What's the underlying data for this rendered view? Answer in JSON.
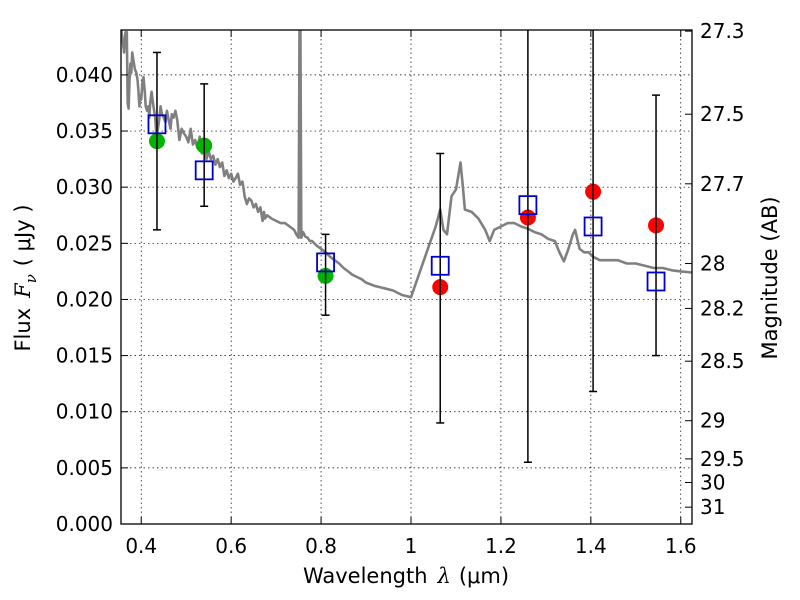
{
  "chart_data": {
    "type": "scatter",
    "xlabel_prefix": "Wavelength",
    "xlabel_symbol": "λ",
    "xlabel_unit": "(μm)",
    "ylabel_prefix": "Flux",
    "ylabel_symbol": "F",
    "ylabel_subscript": "ν",
    "ylabel_unit": "( μJy )",
    "y2label": "Magnitude (AB)",
    "xlim": [
      0.355,
      1.625
    ],
    "ylim": [
      0.0,
      0.044
    ],
    "grid": true,
    "x_ticks": [
      0.4,
      0.6,
      0.8,
      1.0,
      1.2,
      1.4,
      1.6
    ],
    "x_tick_labels": [
      "0.4",
      "0.6",
      "0.8",
      "1",
      "1.2",
      "1.4",
      "1.6"
    ],
    "y_ticks": [
      0.0,
      0.005,
      0.01,
      0.015,
      0.02,
      0.025,
      0.03,
      0.035,
      0.04
    ],
    "y_tick_labels": [
      "0.000",
      "0.005",
      "0.010",
      "0.015",
      "0.020",
      "0.025",
      "0.030",
      "0.035",
      "0.040"
    ],
    "mag_ticks": [
      {
        "flux": 0.0439,
        "label": "27.3"
      },
      {
        "flux": 0.0365,
        "label": "27.5"
      },
      {
        "flux": 0.0303,
        "label": "27.7"
      },
      {
        "flux": 0.0232,
        "label": "28"
      },
      {
        "flux": 0.0192,
        "label": "28.2"
      },
      {
        "flux": 0.0145,
        "label": "28.5"
      },
      {
        "flux": 0.0092,
        "label": "29"
      },
      {
        "flux": 0.0058,
        "label": "29.5"
      },
      {
        "flux": 0.0037,
        "label": "30"
      },
      {
        "flux": 0.0015,
        "label": "31"
      }
    ],
    "series": [
      {
        "name": "model spectrum",
        "kind": "line",
        "color": "#808080",
        "points": [
          [
            0.356,
            0.044
          ],
          [
            0.362,
            0.042
          ],
          [
            0.365,
            0.0438
          ],
          [
            0.368,
            0.0438
          ],
          [
            0.37,
            0.0375
          ],
          [
            0.372,
            0.037
          ],
          [
            0.374,
            0.0395
          ],
          [
            0.376,
            0.041
          ],
          [
            0.378,
            0.0402
          ],
          [
            0.38,
            0.042
          ],
          [
            0.383,
            0.0412
          ],
          [
            0.386,
            0.0405
          ],
          [
            0.389,
            0.0402
          ],
          [
            0.392,
            0.0395
          ],
          [
            0.394,
            0.0385
          ],
          [
            0.396,
            0.0372
          ],
          [
            0.398,
            0.0382
          ],
          [
            0.4,
            0.0378
          ],
          [
            0.403,
            0.0395
          ],
          [
            0.405,
            0.0398
          ],
          [
            0.408,
            0.0385
          ],
          [
            0.41,
            0.0372
          ],
          [
            0.413,
            0.0368
          ],
          [
            0.416,
            0.0372
          ],
          [
            0.418,
            0.0362
          ],
          [
            0.42,
            0.0375
          ],
          [
            0.423,
            0.0385
          ],
          [
            0.425,
            0.0378
          ],
          [
            0.428,
            0.037
          ],
          [
            0.431,
            0.0362
          ],
          [
            0.434,
            0.0345
          ],
          [
            0.437,
            0.0352
          ],
          [
            0.44,
            0.036
          ],
          [
            0.443,
            0.0372
          ],
          [
            0.446,
            0.0365
          ],
          [
            0.45,
            0.0362
          ],
          [
            0.454,
            0.0358
          ],
          [
            0.457,
            0.0368
          ],
          [
            0.46,
            0.0362
          ],
          [
            0.465,
            0.0352
          ],
          [
            0.468,
            0.0365
          ],
          [
            0.472,
            0.0362
          ],
          [
            0.476,
            0.0368
          ],
          [
            0.48,
            0.036
          ],
          [
            0.485,
            0.0342
          ],
          [
            0.49,
            0.0352
          ],
          [
            0.495,
            0.0348
          ],
          [
            0.5,
            0.0345
          ],
          [
            0.505,
            0.034
          ],
          [
            0.51,
            0.0352
          ],
          [
            0.515,
            0.0338
          ],
          [
            0.52,
            0.0342
          ],
          [
            0.525,
            0.0335
          ],
          [
            0.53,
            0.0345
          ],
          [
            0.535,
            0.033
          ],
          [
            0.54,
            0.0335
          ],
          [
            0.545,
            0.0325
          ],
          [
            0.55,
            0.0332
          ],
          [
            0.555,
            0.0325
          ],
          [
            0.56,
            0.0328
          ],
          [
            0.565,
            0.032
          ],
          [
            0.57,
            0.0325
          ],
          [
            0.575,
            0.0318
          ],
          [
            0.58,
            0.0322
          ],
          [
            0.585,
            0.031
          ],
          [
            0.59,
            0.0315
          ],
          [
            0.595,
            0.0308
          ],
          [
            0.6,
            0.0312
          ],
          [
            0.605,
            0.0305
          ],
          [
            0.61,
            0.0308
          ],
          [
            0.615,
            0.0312
          ],
          [
            0.62,
            0.0302
          ],
          [
            0.625,
            0.0305
          ],
          [
            0.628,
            0.0298
          ],
          [
            0.63,
            0.0292
          ],
          [
            0.635,
            0.0285
          ],
          [
            0.64,
            0.029
          ],
          [
            0.645,
            0.0288
          ],
          [
            0.65,
            0.0282
          ],
          [
            0.655,
            0.0285
          ],
          [
            0.66,
            0.0278
          ],
          [
            0.665,
            0.0282
          ],
          [
            0.67,
            0.027
          ],
          [
            0.673,
            0.0278
          ],
          [
            0.675,
            0.0272
          ],
          [
            0.68,
            0.0275
          ],
          [
            0.69,
            0.0272
          ],
          [
            0.7,
            0.027
          ],
          [
            0.71,
            0.0268
          ],
          [
            0.72,
            0.0268
          ],
          [
            0.73,
            0.0265
          ],
          [
            0.74,
            0.0262
          ],
          [
            0.745,
            0.0258
          ],
          [
            0.75,
            0.0255
          ],
          [
            0.752,
            0.044
          ],
          [
            0.754,
            0.044
          ],
          [
            0.756,
            0.0255
          ],
          [
            0.76,
            0.026
          ],
          [
            0.765,
            0.0256
          ],
          [
            0.77,
            0.0255
          ],
          [
            0.775,
            0.0252
          ],
          [
            0.78,
            0.0252
          ],
          [
            0.79,
            0.0248
          ],
          [
            0.8,
            0.0245
          ],
          [
            0.81,
            0.0242
          ],
          [
            0.82,
            0.0238
          ],
          [
            0.83,
            0.0235
          ],
          [
            0.84,
            0.0232
          ],
          [
            0.85,
            0.0228
          ],
          [
            0.86,
            0.0225
          ],
          [
            0.87,
            0.0222
          ],
          [
            0.88,
            0.022
          ],
          [
            0.89,
            0.0218
          ],
          [
            0.9,
            0.0215
          ],
          [
            0.92,
            0.0212
          ],
          [
            0.94,
            0.021
          ],
          [
            0.96,
            0.0208
          ],
          [
            0.98,
            0.0204
          ],
          [
            1.0,
            0.0202
          ],
          [
            1.02,
            0.0225
          ],
          [
            1.04,
            0.0248
          ],
          [
            1.055,
            0.0265
          ],
          [
            1.065,
            0.028
          ],
          [
            1.072,
            0.0262
          ],
          [
            1.08,
            0.0258
          ],
          [
            1.09,
            0.0292
          ],
          [
            1.1,
            0.0298
          ],
          [
            1.11,
            0.0322
          ],
          [
            1.115,
            0.0302
          ],
          [
            1.12,
            0.028
          ],
          [
            1.135,
            0.0278
          ],
          [
            1.15,
            0.0272
          ],
          [
            1.165,
            0.0262
          ],
          [
            1.175,
            0.0252
          ],
          [
            1.185,
            0.0262
          ],
          [
            1.2,
            0.0265
          ],
          [
            1.215,
            0.0268
          ],
          [
            1.23,
            0.0268
          ],
          [
            1.245,
            0.0265
          ],
          [
            1.26,
            0.0263
          ],
          [
            1.275,
            0.026
          ],
          [
            1.29,
            0.0258
          ],
          [
            1.305,
            0.0254
          ],
          [
            1.32,
            0.0252
          ],
          [
            1.33,
            0.0242
          ],
          [
            1.34,
            0.0234
          ],
          [
            1.35,
            0.0245
          ],
          [
            1.36,
            0.0258
          ],
          [
            1.365,
            0.0262
          ],
          [
            1.375,
            0.0245
          ],
          [
            1.385,
            0.0242
          ],
          [
            1.395,
            0.0242
          ],
          [
            1.405,
            0.0238
          ],
          [
            1.42,
            0.0235
          ],
          [
            1.44,
            0.0235
          ],
          [
            1.46,
            0.0235
          ],
          [
            1.48,
            0.0232
          ],
          [
            1.5,
            0.0232
          ],
          [
            1.52,
            0.023
          ],
          [
            1.54,
            0.0228
          ],
          [
            1.56,
            0.0228
          ],
          [
            1.58,
            0.0226
          ],
          [
            1.6,
            0.0225
          ],
          [
            1.625,
            0.0224
          ]
        ]
      },
      {
        "name": "photometry (green)",
        "kind": "points",
        "marker": "circle",
        "color": "#00b300",
        "x": [
          0.435,
          0.54,
          0.81
        ],
        "y": [
          0.0341,
          0.0337,
          0.0221
        ]
      },
      {
        "name": "photometry (red)",
        "kind": "points",
        "marker": "circle",
        "color": "#ff0000",
        "x": [
          1.065,
          1.26,
          1.405,
          1.545
        ],
        "y": [
          0.0211,
          0.0273,
          0.0296,
          0.0266
        ]
      },
      {
        "name": "model synthetic flux",
        "kind": "points",
        "marker": "square",
        "color": "#0000cc",
        "x": [
          0.435,
          0.54,
          0.81,
          1.065,
          1.26,
          1.405,
          1.545
        ],
        "y": [
          0.0356,
          0.0315,
          0.0233,
          0.023,
          0.0284,
          0.0265,
          0.0216
        ]
      },
      {
        "name": "errorbars",
        "kind": "errorbar",
        "color": "#000000",
        "x": [
          0.435,
          0.54,
          0.81,
          1.065,
          1.26,
          1.405,
          1.545
        ],
        "lower": [
          0.0262,
          0.0283,
          0.0186,
          0.009,
          0.0055,
          0.0118,
          0.015
        ],
        "upper": [
          0.042,
          0.0392,
          0.0258,
          0.033,
          0.044,
          0.044,
          0.0382
        ]
      }
    ]
  }
}
